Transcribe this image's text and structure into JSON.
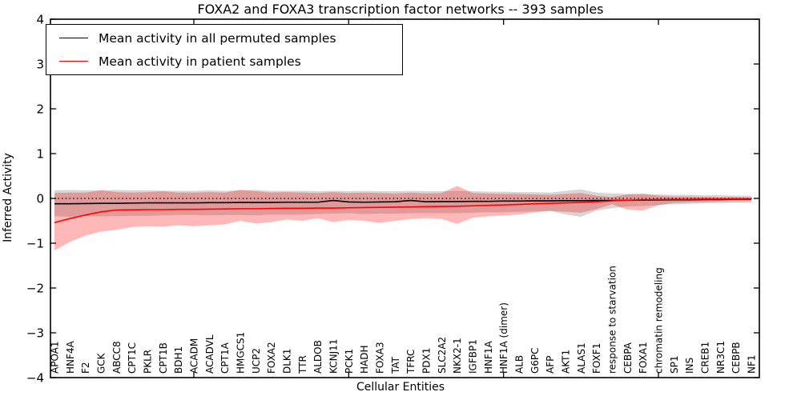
{
  "figure": {
    "title": "FOXA2 and FOXA3 transcription factor networks -- 393 samples",
    "xlabel": "Cellular Entities",
    "ylabel": "Inferred Activity"
  },
  "legend": {
    "items": [
      {
        "label": "Mean activity in all permuted samples",
        "color": "#000000"
      },
      {
        "label": "Mean activity in patient samples",
        "color": "#ff0000"
      }
    ]
  },
  "chart_data": {
    "type": "line",
    "title": "FOXA2 and FOXA3 transcription factor networks -- 393 samples",
    "xlabel": "Cellular Entities",
    "ylabel": "Inferred Activity",
    "ylim": [
      -4,
      4
    ],
    "yticks": [
      -4,
      -3,
      -2,
      -1,
      0,
      1,
      2,
      3,
      4
    ],
    "x_major_tick_indices": [
      9,
      19,
      29,
      39
    ],
    "grid": false,
    "legend_position": "upper left",
    "zero_reference_line": {
      "style": "dotted",
      "color": "#000000",
      "y": 0
    },
    "categories": [
      "APOA1",
      "HNF4A",
      "F2",
      "GCK",
      "ABCC8",
      "CPT1C",
      "PKLR",
      "CPT1B",
      "BDH1",
      "ACADM",
      "ACADVL",
      "CPT1A",
      "HMGCS1",
      "UCP2",
      "FOXA2",
      "DLK1",
      "TTR",
      "ALDOB",
      "KCNJ11",
      "PCK1",
      "HADH",
      "FOXA3",
      "TAT",
      "TFRC",
      "PDX1",
      "SLC2A2",
      "NKX2-1",
      "IGFBP1",
      "HNF1A",
      "HNF1A (dimer)",
      "ALB",
      "G6PC",
      "AFP",
      "AKT1",
      "ALAS1",
      "FOXF1",
      "response to starvation",
      "CEBPA",
      "FOXA1",
      "chromatin remodeling",
      "SP1",
      "INS",
      "CREB1",
      "NR3C1",
      "CEBPB",
      "NF1"
    ],
    "series": [
      {
        "name": "Mean activity in all permuted samples",
        "color": "#000000",
        "values": [
          -0.12,
          -0.12,
          -0.115,
          -0.11,
          -0.11,
          -0.105,
          -0.1,
          -0.1,
          -0.1,
          -0.1,
          -0.095,
          -0.095,
          -0.09,
          -0.09,
          -0.09,
          -0.085,
          -0.085,
          -0.085,
          -0.045,
          -0.08,
          -0.085,
          -0.08,
          -0.075,
          -0.045,
          -0.075,
          -0.07,
          -0.07,
          -0.065,
          -0.065,
          -0.06,
          -0.06,
          -0.055,
          -0.055,
          -0.05,
          -0.05,
          -0.045,
          -0.045,
          -0.04,
          -0.04,
          -0.035,
          -0.03,
          -0.03,
          -0.025,
          -0.025,
          -0.02,
          -0.02
        ]
      },
      {
        "name": "Mean activity in patient samples",
        "color": "#ff0000",
        "values": [
          -0.54,
          -0.45,
          -0.37,
          -0.3,
          -0.26,
          -0.255,
          -0.25,
          -0.25,
          -0.245,
          -0.245,
          -0.24,
          -0.235,
          -0.23,
          -0.23,
          -0.225,
          -0.22,
          -0.22,
          -0.215,
          -0.215,
          -0.21,
          -0.205,
          -0.2,
          -0.195,
          -0.19,
          -0.185,
          -0.18,
          -0.175,
          -0.165,
          -0.155,
          -0.145,
          -0.135,
          -0.12,
          -0.11,
          -0.1,
          -0.09,
          -0.075,
          -0.055,
          -0.04,
          -0.03,
          -0.025,
          -0.02,
          -0.02,
          -0.015,
          -0.015,
          -0.01,
          -0.01
        ]
      }
    ],
    "bands": [
      {
        "name": "permuted-samples-std-band",
        "color": "#808080",
        "opacity": 0.32,
        "upper": [
          0.18,
          0.19,
          0.18,
          0.18,
          0.19,
          0.18,
          0.18,
          0.175,
          0.17,
          0.17,
          0.18,
          0.17,
          0.18,
          0.19,
          0.17,
          0.17,
          0.17,
          0.16,
          0.17,
          0.16,
          0.17,
          0.16,
          0.16,
          0.17,
          0.16,
          0.16,
          0.17,
          0.16,
          0.15,
          0.15,
          0.14,
          0.14,
          0.13,
          0.17,
          0.2,
          0.13,
          0.11,
          0.1,
          0.1,
          0.09,
          0.08,
          0.08,
          0.07,
          0.07,
          0.06,
          0.06
        ],
        "lower": [
          -0.4,
          -0.41,
          -0.4,
          -0.4,
          -0.4,
          -0.39,
          -0.39,
          -0.38,
          -0.37,
          -0.37,
          -0.38,
          -0.37,
          -0.37,
          -0.38,
          -0.36,
          -0.36,
          -0.36,
          -0.35,
          -0.34,
          -0.33,
          -0.35,
          -0.34,
          -0.34,
          -0.33,
          -0.33,
          -0.33,
          -0.33,
          -0.32,
          -0.31,
          -0.31,
          -0.3,
          -0.29,
          -0.28,
          -0.36,
          -0.41,
          -0.27,
          -0.22,
          -0.18,
          -0.17,
          -0.15,
          -0.13,
          -0.12,
          -0.11,
          -0.11,
          -0.1,
          -0.1
        ]
      },
      {
        "name": "patient-samples-std-band",
        "color": "#ff0000",
        "opacity": 0.28,
        "upper": [
          0.12,
          0.13,
          0.13,
          0.18,
          0.14,
          0.13,
          0.14,
          0.16,
          0.13,
          0.13,
          0.14,
          0.13,
          0.19,
          0.16,
          0.13,
          0.14,
          0.13,
          0.12,
          0.14,
          0.12,
          0.13,
          0.12,
          0.11,
          0.13,
          0.11,
          0.12,
          0.28,
          0.12,
          0.11,
          0.1,
          0.1,
          0.09,
          0.08,
          0.1,
          0.12,
          0.06,
          0.03,
          0.09,
          0.1,
          0.06,
          0.04,
          0.04,
          0.035,
          0.03,
          0.03,
          0.025
        ],
        "lower": [
          -1.16,
          -0.97,
          -0.83,
          -0.74,
          -0.7,
          -0.64,
          -0.62,
          -0.63,
          -0.6,
          -0.62,
          -0.6,
          -0.58,
          -0.5,
          -0.56,
          -0.53,
          -0.47,
          -0.5,
          -0.44,
          -0.53,
          -0.48,
          -0.5,
          -0.55,
          -0.5,
          -0.46,
          -0.44,
          -0.46,
          -0.57,
          -0.43,
          -0.4,
          -0.38,
          -0.36,
          -0.31,
          -0.28,
          -0.3,
          -0.32,
          -0.24,
          -0.13,
          -0.25,
          -0.27,
          -0.15,
          -0.1,
          -0.09,
          -0.08,
          -0.07,
          -0.06,
          -0.055
        ]
      }
    ]
  }
}
